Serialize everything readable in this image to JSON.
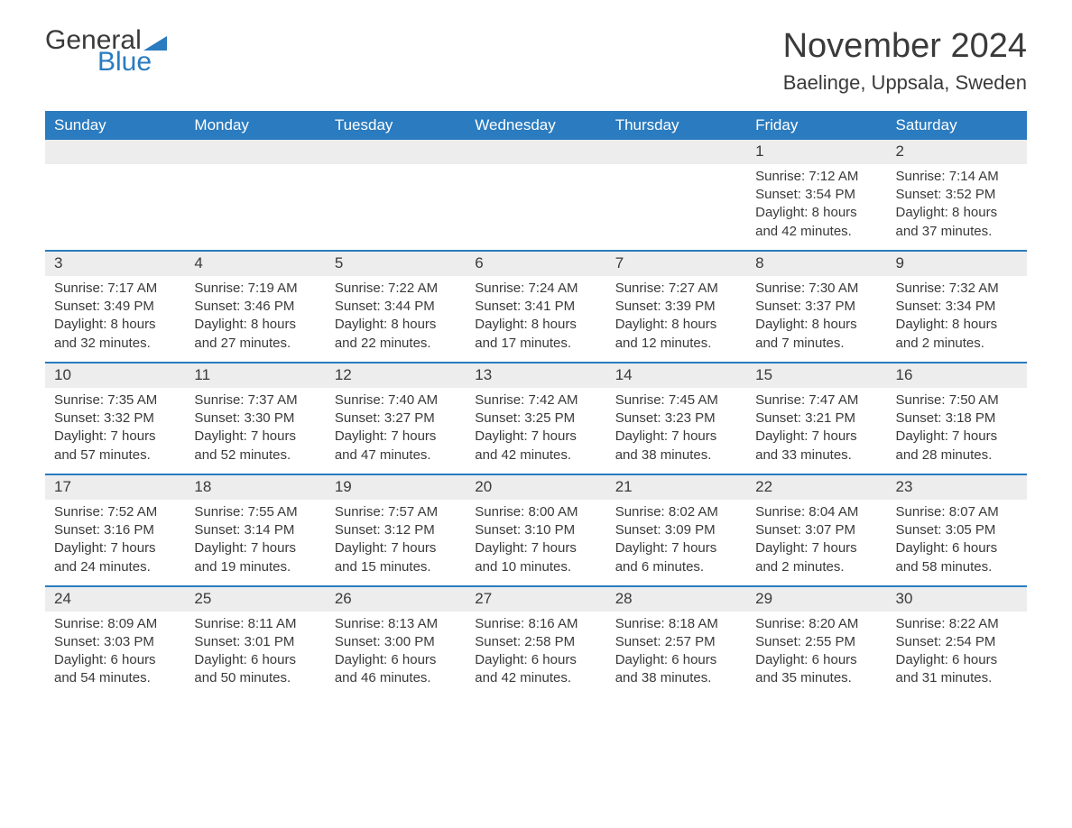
{
  "logo": {
    "general": "General",
    "blue": "Blue",
    "tri_color": "#2a7bbf"
  },
  "title": "November 2024",
  "location": "Baelinge, Uppsala, Sweden",
  "colors": {
    "header_bg": "#2a7bbf",
    "header_text": "#ffffff",
    "daynum_bg": "#ededed",
    "text": "#3a3a3a",
    "rule": "#2a7bbf",
    "page_bg": "#ffffff"
  },
  "typography": {
    "title_fontsize": 38,
    "location_fontsize": 22,
    "dow_fontsize": 17,
    "cell_fontsize": 15
  },
  "days_of_week": [
    "Sunday",
    "Monday",
    "Tuesday",
    "Wednesday",
    "Thursday",
    "Friday",
    "Saturday"
  ],
  "weeks": [
    [
      null,
      null,
      null,
      null,
      null,
      {
        "n": "1",
        "sunrise": "Sunrise: 7:12 AM",
        "sunset": "Sunset: 3:54 PM",
        "d1": "Daylight: 8 hours",
        "d2": "and 42 minutes."
      },
      {
        "n": "2",
        "sunrise": "Sunrise: 7:14 AM",
        "sunset": "Sunset: 3:52 PM",
        "d1": "Daylight: 8 hours",
        "d2": "and 37 minutes."
      }
    ],
    [
      {
        "n": "3",
        "sunrise": "Sunrise: 7:17 AM",
        "sunset": "Sunset: 3:49 PM",
        "d1": "Daylight: 8 hours",
        "d2": "and 32 minutes."
      },
      {
        "n": "4",
        "sunrise": "Sunrise: 7:19 AM",
        "sunset": "Sunset: 3:46 PM",
        "d1": "Daylight: 8 hours",
        "d2": "and 27 minutes."
      },
      {
        "n": "5",
        "sunrise": "Sunrise: 7:22 AM",
        "sunset": "Sunset: 3:44 PM",
        "d1": "Daylight: 8 hours",
        "d2": "and 22 minutes."
      },
      {
        "n": "6",
        "sunrise": "Sunrise: 7:24 AM",
        "sunset": "Sunset: 3:41 PM",
        "d1": "Daylight: 8 hours",
        "d2": "and 17 minutes."
      },
      {
        "n": "7",
        "sunrise": "Sunrise: 7:27 AM",
        "sunset": "Sunset: 3:39 PM",
        "d1": "Daylight: 8 hours",
        "d2": "and 12 minutes."
      },
      {
        "n": "8",
        "sunrise": "Sunrise: 7:30 AM",
        "sunset": "Sunset: 3:37 PM",
        "d1": "Daylight: 8 hours",
        "d2": "and 7 minutes."
      },
      {
        "n": "9",
        "sunrise": "Sunrise: 7:32 AM",
        "sunset": "Sunset: 3:34 PM",
        "d1": "Daylight: 8 hours",
        "d2": "and 2 minutes."
      }
    ],
    [
      {
        "n": "10",
        "sunrise": "Sunrise: 7:35 AM",
        "sunset": "Sunset: 3:32 PM",
        "d1": "Daylight: 7 hours",
        "d2": "and 57 minutes."
      },
      {
        "n": "11",
        "sunrise": "Sunrise: 7:37 AM",
        "sunset": "Sunset: 3:30 PM",
        "d1": "Daylight: 7 hours",
        "d2": "and 52 minutes."
      },
      {
        "n": "12",
        "sunrise": "Sunrise: 7:40 AM",
        "sunset": "Sunset: 3:27 PM",
        "d1": "Daylight: 7 hours",
        "d2": "and 47 minutes."
      },
      {
        "n": "13",
        "sunrise": "Sunrise: 7:42 AM",
        "sunset": "Sunset: 3:25 PM",
        "d1": "Daylight: 7 hours",
        "d2": "and 42 minutes."
      },
      {
        "n": "14",
        "sunrise": "Sunrise: 7:45 AM",
        "sunset": "Sunset: 3:23 PM",
        "d1": "Daylight: 7 hours",
        "d2": "and 38 minutes."
      },
      {
        "n": "15",
        "sunrise": "Sunrise: 7:47 AM",
        "sunset": "Sunset: 3:21 PM",
        "d1": "Daylight: 7 hours",
        "d2": "and 33 minutes."
      },
      {
        "n": "16",
        "sunrise": "Sunrise: 7:50 AM",
        "sunset": "Sunset: 3:18 PM",
        "d1": "Daylight: 7 hours",
        "d2": "and 28 minutes."
      }
    ],
    [
      {
        "n": "17",
        "sunrise": "Sunrise: 7:52 AM",
        "sunset": "Sunset: 3:16 PM",
        "d1": "Daylight: 7 hours",
        "d2": "and 24 minutes."
      },
      {
        "n": "18",
        "sunrise": "Sunrise: 7:55 AM",
        "sunset": "Sunset: 3:14 PM",
        "d1": "Daylight: 7 hours",
        "d2": "and 19 minutes."
      },
      {
        "n": "19",
        "sunrise": "Sunrise: 7:57 AM",
        "sunset": "Sunset: 3:12 PM",
        "d1": "Daylight: 7 hours",
        "d2": "and 15 minutes."
      },
      {
        "n": "20",
        "sunrise": "Sunrise: 8:00 AM",
        "sunset": "Sunset: 3:10 PM",
        "d1": "Daylight: 7 hours",
        "d2": "and 10 minutes."
      },
      {
        "n": "21",
        "sunrise": "Sunrise: 8:02 AM",
        "sunset": "Sunset: 3:09 PM",
        "d1": "Daylight: 7 hours",
        "d2": "and 6 minutes."
      },
      {
        "n": "22",
        "sunrise": "Sunrise: 8:04 AM",
        "sunset": "Sunset: 3:07 PM",
        "d1": "Daylight: 7 hours",
        "d2": "and 2 minutes."
      },
      {
        "n": "23",
        "sunrise": "Sunrise: 8:07 AM",
        "sunset": "Sunset: 3:05 PM",
        "d1": "Daylight: 6 hours",
        "d2": "and 58 minutes."
      }
    ],
    [
      {
        "n": "24",
        "sunrise": "Sunrise: 8:09 AM",
        "sunset": "Sunset: 3:03 PM",
        "d1": "Daylight: 6 hours",
        "d2": "and 54 minutes."
      },
      {
        "n": "25",
        "sunrise": "Sunrise: 8:11 AM",
        "sunset": "Sunset: 3:01 PM",
        "d1": "Daylight: 6 hours",
        "d2": "and 50 minutes."
      },
      {
        "n": "26",
        "sunrise": "Sunrise: 8:13 AM",
        "sunset": "Sunset: 3:00 PM",
        "d1": "Daylight: 6 hours",
        "d2": "and 46 minutes."
      },
      {
        "n": "27",
        "sunrise": "Sunrise: 8:16 AM",
        "sunset": "Sunset: 2:58 PM",
        "d1": "Daylight: 6 hours",
        "d2": "and 42 minutes."
      },
      {
        "n": "28",
        "sunrise": "Sunrise: 8:18 AM",
        "sunset": "Sunset: 2:57 PM",
        "d1": "Daylight: 6 hours",
        "d2": "and 38 minutes."
      },
      {
        "n": "29",
        "sunrise": "Sunrise: 8:20 AM",
        "sunset": "Sunset: 2:55 PM",
        "d1": "Daylight: 6 hours",
        "d2": "and 35 minutes."
      },
      {
        "n": "30",
        "sunrise": "Sunrise: 8:22 AM",
        "sunset": "Sunset: 2:54 PM",
        "d1": "Daylight: 6 hours",
        "d2": "and 31 minutes."
      }
    ]
  ]
}
